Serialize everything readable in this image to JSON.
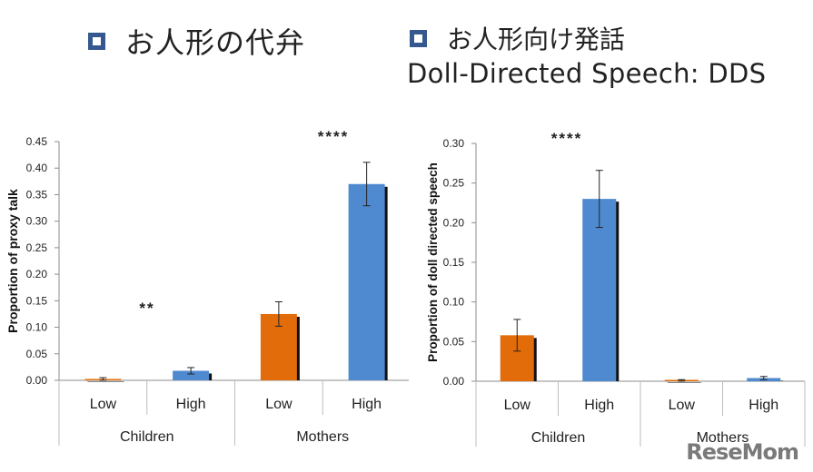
{
  "header": {
    "legend_left": "お人形の代弁",
    "legend_right": "お人形向け発話",
    "subtitle": "Doll-Directed Speech: DDS"
  },
  "colors": {
    "low": "#e36c0a",
    "high": "#4f8ad0",
    "legend_square": "#34588f",
    "axis": "#8c8c8c"
  },
  "watermark": "ReseMom",
  "chart_data": [
    {
      "type": "bar",
      "title": "お人形の代弁",
      "ylabel": "Proportion of proxy talk",
      "xlabel": "",
      "ylim": [
        0,
        0.45
      ],
      "yticks": [
        "0.00",
        "0.05",
        "0.10",
        "0.15",
        "0.20",
        "0.25",
        "0.30",
        "0.35",
        "0.40",
        "0.45"
      ],
      "groups": [
        "Children",
        "Mothers"
      ],
      "categories": [
        "Low",
        "High",
        "Low",
        "High"
      ],
      "values": [
        0.002,
        0.018,
        0.125,
        0.37
      ],
      "errors": [
        0.003,
        0.006,
        0.023,
        0.041
      ],
      "bar_colors": [
        "#e36c0a",
        "#4f8ad0",
        "#e36c0a",
        "#4f8ad0"
      ],
      "annotations": [
        {
          "text": "**",
          "group": "Children"
        },
        {
          "text": "****",
          "group": "Mothers"
        }
      ],
      "grid": false
    },
    {
      "type": "bar",
      "title": "お人形向け発話 Doll-Directed Speech: DDS",
      "ylabel": "Proportion of doll directed speech",
      "xlabel": "",
      "ylim": [
        0,
        0.3
      ],
      "yticks": [
        "0.00",
        "0.05",
        "0.10",
        "0.15",
        "0.20",
        "0.25",
        "0.30"
      ],
      "groups": [
        "Children",
        "Mothers"
      ],
      "categories": [
        "Low",
        "High",
        "Low",
        "High"
      ],
      "values": [
        0.058,
        0.23,
        0.001,
        0.004
      ],
      "errors": [
        0.02,
        0.036,
        0.001,
        0.002
      ],
      "bar_colors": [
        "#e36c0a",
        "#4f8ad0",
        "#e36c0a",
        "#4f8ad0"
      ],
      "annotations": [
        {
          "text": "****",
          "group": "Children"
        }
      ],
      "grid": false
    }
  ]
}
